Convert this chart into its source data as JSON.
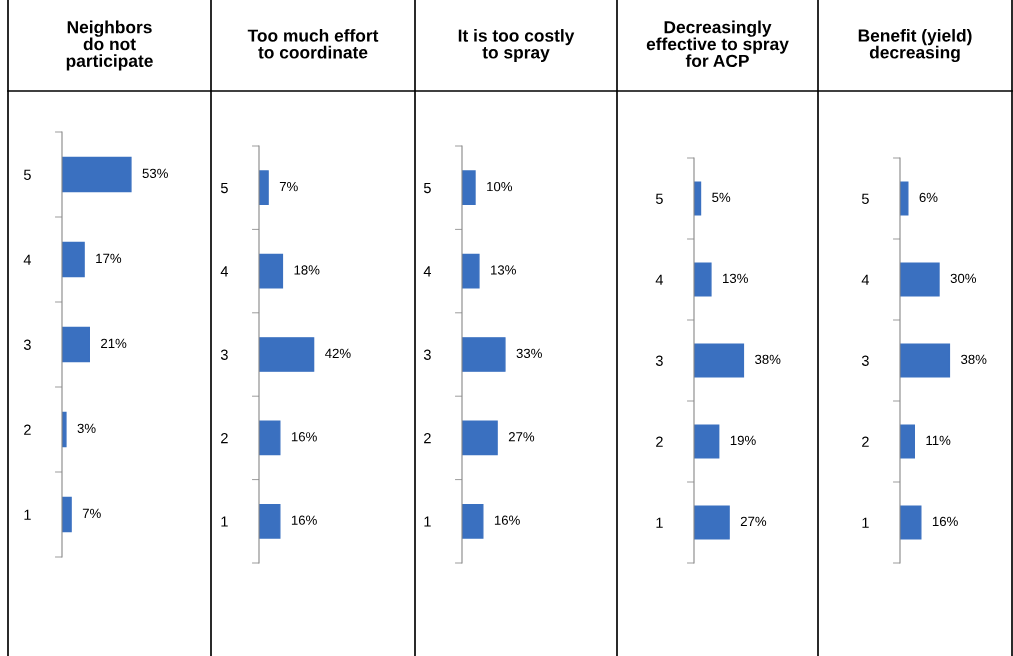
{
  "chart_data": [
    {
      "type": "bar",
      "orientation": "horizontal",
      "title": "Neighbors\ndo not\nparticipate",
      "categories": [
        "5",
        "4",
        "3",
        "2",
        "1"
      ],
      "values": [
        53,
        17,
        21,
        3,
        7
      ],
      "value_labels": [
        "53%",
        "17%",
        "21%",
        "3%",
        "7%"
      ],
      "color": "#3a70c0",
      "tick_labels": "y",
      "grid": false,
      "legend": false
    },
    {
      "type": "bar",
      "orientation": "horizontal",
      "title": "Too much effort\nto coordinate",
      "categories": [
        "5",
        "4",
        "3",
        "2",
        "1"
      ],
      "values": [
        7,
        18,
        42,
        16,
        16
      ],
      "value_labels": [
        "7%",
        "18%",
        "42%",
        "16%",
        "16%"
      ],
      "color": "#3a70c0",
      "tick_labels": "y",
      "grid": false,
      "legend": false
    },
    {
      "type": "bar",
      "orientation": "horizontal",
      "title": "It is too costly\nto spray",
      "categories": [
        "5",
        "4",
        "3",
        "2",
        "1"
      ],
      "values": [
        10,
        13,
        33,
        27,
        16
      ],
      "value_labels": [
        "10%",
        "13%",
        "33%",
        "27%",
        "16%"
      ],
      "color": "#3a70c0",
      "tick_labels": "y",
      "grid": false,
      "legend": false
    },
    {
      "type": "bar",
      "orientation": "horizontal",
      "title": "Decreasingly\neffective to spray\nfor ACP",
      "categories": [
        "5",
        "4",
        "3",
        "2",
        "1"
      ],
      "values": [
        5,
        13,
        38,
        19,
        27
      ],
      "value_labels": [
        "5%",
        "13%",
        "38%",
        "19%",
        "27%"
      ],
      "color": "#3a70c0",
      "tick_labels": "y",
      "grid": false,
      "legend": false
    },
    {
      "type": "bar",
      "orientation": "horizontal",
      "title": "Benefit (yield)\ndecreasing",
      "categories": [
        "5",
        "4",
        "3",
        "2",
        "1"
      ],
      "values": [
        6,
        30,
        38,
        11,
        16
      ],
      "value_labels": [
        "6%",
        "30%",
        "38%",
        "11%",
        "16%"
      ],
      "color": "#3a70c0",
      "tick_labels": "y",
      "grid": false,
      "legend": false
    }
  ]
}
